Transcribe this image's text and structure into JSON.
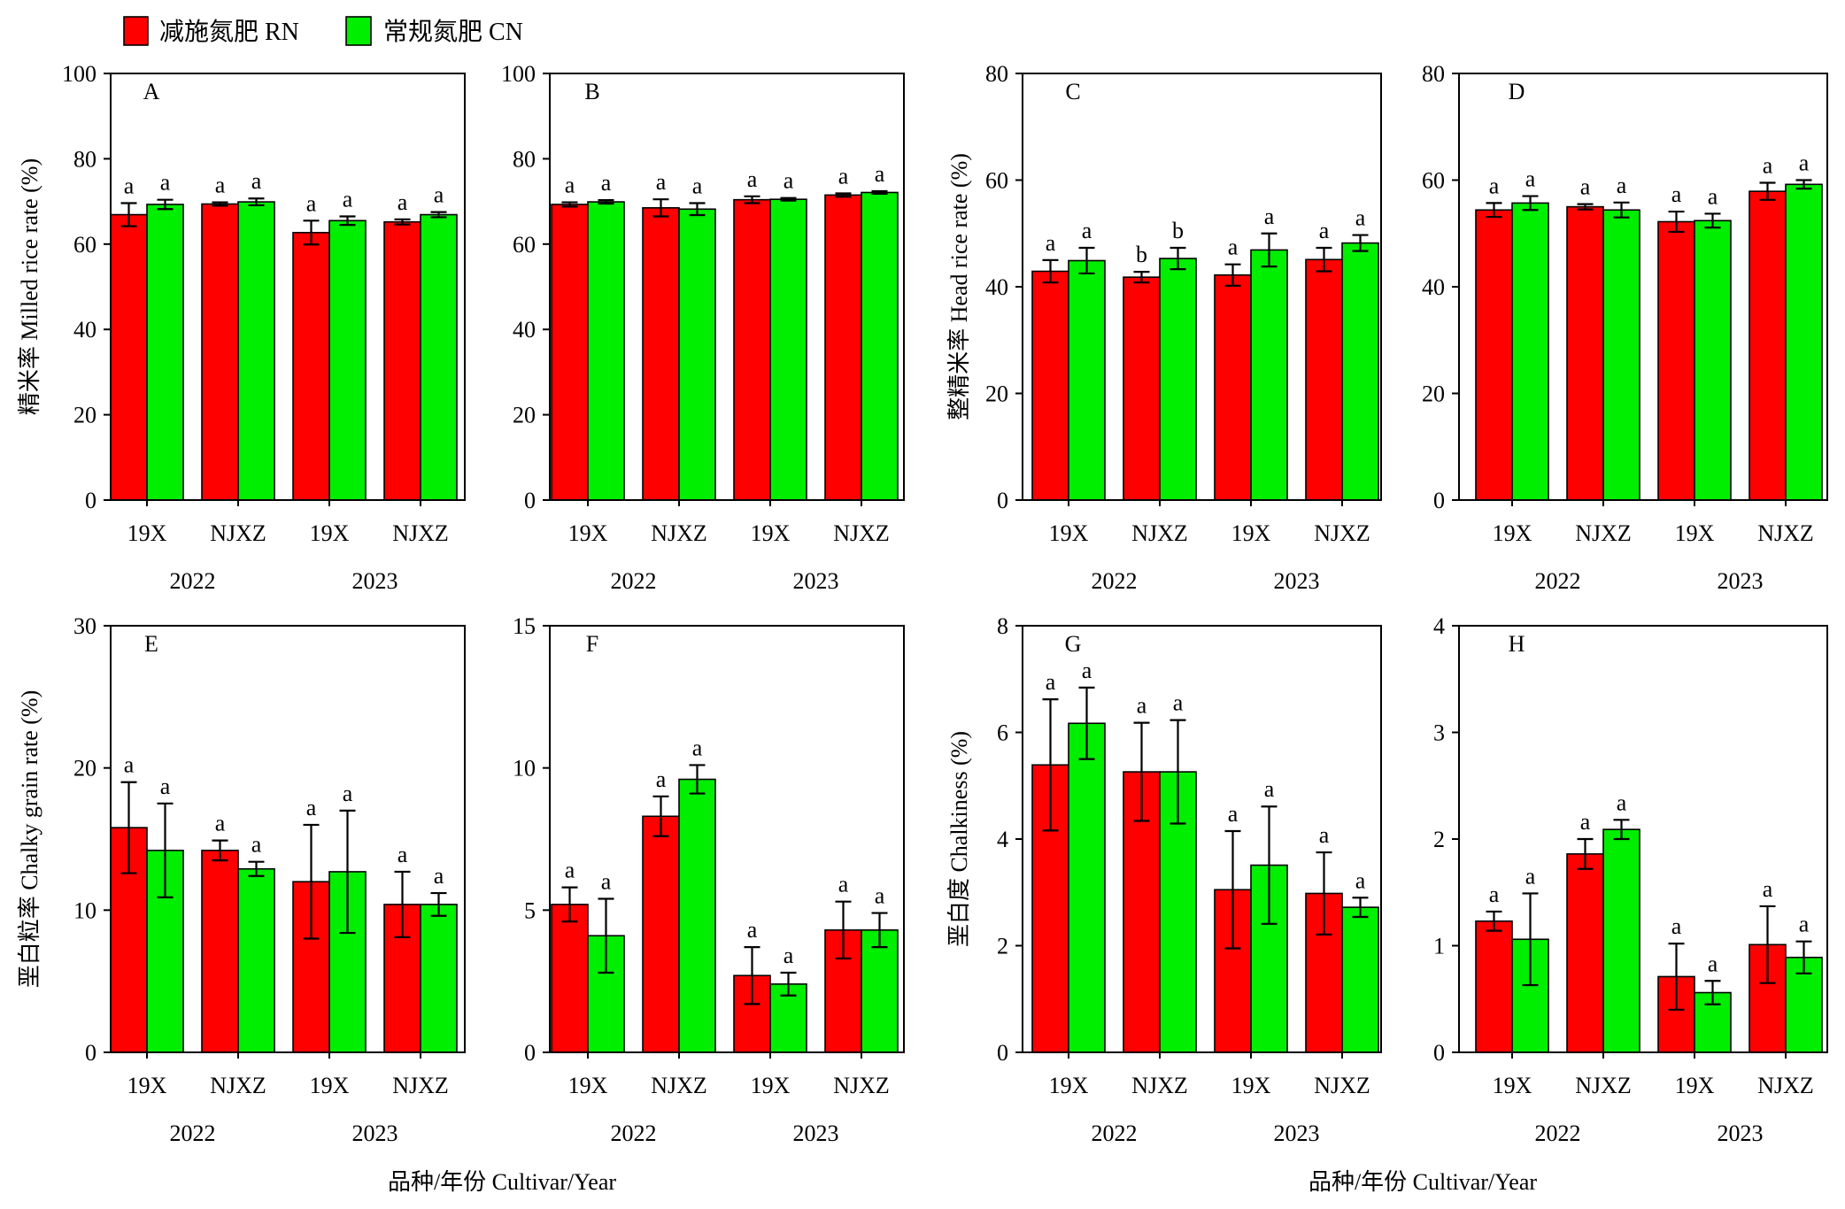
{
  "legend": [
    {
      "label": "减施氮肥 RN",
      "color": "#ff0000"
    },
    {
      "label": "常规氮肥 CN",
      "color": "#00ee00"
    }
  ],
  "legend_placement": "top-left",
  "figure_xlabels": [
    "品种/年份 Cultivar/Year",
    "品种/年份 Cultivar/Year"
  ],
  "chart_data": [
    {
      "type": "bar",
      "panel_label": "A",
      "ylabel": "精米率 Milled rice rate (%)",
      "categories": [
        "19X",
        "NJXZ",
        "19X",
        "NJXZ"
      ],
      "years": [
        "2022",
        "2023"
      ],
      "ylim": [
        0,
        100
      ],
      "yticks": [
        0,
        20,
        40,
        60,
        80,
        100
      ],
      "grid": false,
      "series": [
        {
          "color": "#ff0000",
          "values": [
            66.9,
            69.4,
            62.7,
            65.2
          ],
          "errors": [
            2.7,
            0.4,
            2.8,
            0.6
          ],
          "letters": [
            "a",
            "a",
            "a",
            "a"
          ]
        },
        {
          "color": "#00ee00",
          "values": [
            69.3,
            69.9,
            65.5,
            66.9
          ],
          "errors": [
            1.1,
            0.8,
            1.0,
            0.6
          ],
          "letters": [
            "a",
            "a",
            "a",
            "a"
          ]
        }
      ]
    },
    {
      "type": "bar",
      "panel_label": "B",
      "ylabel": "",
      "categories": [
        "19X",
        "NJXZ",
        "19X",
        "NJXZ"
      ],
      "years": [
        "2022",
        "2023"
      ],
      "ylim": [
        0,
        100
      ],
      "yticks": [
        0,
        20,
        40,
        60,
        80,
        100
      ],
      "grid": false,
      "series": [
        {
          "color": "#ff0000",
          "values": [
            69.3,
            68.5,
            70.4,
            71.5
          ],
          "errors": [
            0.5,
            2.0,
            0.8,
            0.4
          ],
          "letters": [
            "a",
            "a",
            "a",
            "a"
          ]
        },
        {
          "color": "#00ee00",
          "values": [
            69.9,
            68.2,
            70.5,
            72.1
          ],
          "errors": [
            0.4,
            1.4,
            0.3,
            0.3
          ],
          "letters": [
            "a",
            "a",
            "a",
            "a"
          ]
        }
      ]
    },
    {
      "type": "bar",
      "panel_label": "C",
      "ylabel": "整精米率 Head rice rate (%)",
      "categories": [
        "19X",
        "NJXZ",
        "19X",
        "NJXZ"
      ],
      "years": [
        "2022",
        "2023"
      ],
      "ylim": [
        0,
        80
      ],
      "yticks": [
        0,
        20,
        40,
        60,
        80
      ],
      "grid": false,
      "series": [
        {
          "color": "#ff0000",
          "values": [
            42.9,
            41.8,
            42.2,
            45.1
          ],
          "errors": [
            2.1,
            1.0,
            2.0,
            2.2
          ],
          "letters": [
            "a",
            "b",
            "a",
            "a"
          ]
        },
        {
          "color": "#00ee00",
          "values": [
            44.9,
            45.3,
            46.9,
            48.2
          ],
          "errors": [
            2.4,
            2.0,
            3.1,
            1.5
          ],
          "letters": [
            "a",
            "b",
            "a",
            "a"
          ]
        }
      ]
    },
    {
      "type": "bar",
      "panel_label": "D",
      "ylabel": "",
      "categories": [
        "19X",
        "NJXZ",
        "19X",
        "NJXZ"
      ],
      "years": [
        "2022",
        "2023"
      ],
      "ylim": [
        0,
        80
      ],
      "yticks": [
        0,
        20,
        40,
        60,
        80
      ],
      "grid": false,
      "series": [
        {
          "color": "#ff0000",
          "values": [
            54.4,
            55.0,
            52.2,
            57.9
          ],
          "errors": [
            1.3,
            0.5,
            1.9,
            1.6
          ],
          "letters": [
            "a",
            "a",
            "a",
            "a"
          ]
        },
        {
          "color": "#00ee00",
          "values": [
            55.7,
            54.4,
            52.4,
            59.2
          ],
          "errors": [
            1.3,
            1.4,
            1.3,
            0.8
          ],
          "letters": [
            "a",
            "a",
            "a",
            "a"
          ]
        }
      ]
    },
    {
      "type": "bar",
      "panel_label": "E",
      "ylabel": "垩白粒率 Chalky grain rate (%)",
      "categories": [
        "19X",
        "NJXZ",
        "19X",
        "NJXZ"
      ],
      "years": [
        "2022",
        "2023"
      ],
      "ylim": [
        0,
        30
      ],
      "yticks": [
        0,
        10,
        20,
        30
      ],
      "grid": false,
      "series": [
        {
          "color": "#ff0000",
          "values": [
            15.8,
            14.2,
            12.0,
            10.4
          ],
          "errors": [
            3.2,
            0.7,
            4.0,
            2.3
          ],
          "letters": [
            "a",
            "a",
            "a",
            "a"
          ]
        },
        {
          "color": "#00ee00",
          "values": [
            14.2,
            12.9,
            12.7,
            10.4
          ],
          "errors": [
            3.3,
            0.5,
            4.3,
            0.8
          ],
          "letters": [
            "a",
            "a",
            "a",
            "a"
          ]
        }
      ]
    },
    {
      "type": "bar",
      "panel_label": "F",
      "ylabel": "",
      "categories": [
        "19X",
        "NJXZ",
        "19X",
        "NJXZ"
      ],
      "years": [
        "2022",
        "2023"
      ],
      "ylim": [
        0,
        15
      ],
      "yticks": [
        0,
        5,
        10,
        15
      ],
      "grid": false,
      "series": [
        {
          "color": "#ff0000",
          "values": [
            5.2,
            8.3,
            2.7,
            4.3
          ],
          "errors": [
            0.6,
            0.7,
            1.0,
            1.0
          ],
          "letters": [
            "a",
            "a",
            "a",
            "a"
          ]
        },
        {
          "color": "#00ee00",
          "values": [
            4.1,
            9.6,
            2.4,
            4.3
          ],
          "errors": [
            1.3,
            0.5,
            0.4,
            0.6
          ],
          "letters": [
            "a",
            "a",
            "a",
            "a"
          ]
        }
      ]
    },
    {
      "type": "bar",
      "panel_label": "G",
      "ylabel": "垩白度 Chalkiness (%)",
      "categories": [
        "19X",
        "NJXZ",
        "19X",
        "NJXZ"
      ],
      "years": [
        "2022",
        "2023"
      ],
      "ylim": [
        0,
        8
      ],
      "yticks": [
        0,
        2,
        4,
        6,
        8
      ],
      "grid": false,
      "series": [
        {
          "color": "#ff0000",
          "values": [
            5.39,
            5.26,
            3.05,
            2.98
          ],
          "errors": [
            1.23,
            0.92,
            1.1,
            0.77
          ],
          "letters": [
            "a",
            "a",
            "a",
            "a"
          ]
        },
        {
          "color": "#00ee00",
          "values": [
            6.17,
            5.26,
            3.51,
            2.72
          ],
          "errors": [
            0.67,
            0.97,
            1.1,
            0.18
          ],
          "letters": [
            "a",
            "a",
            "a",
            "a"
          ]
        }
      ]
    },
    {
      "type": "bar",
      "panel_label": "H",
      "ylabel": "",
      "categories": [
        "19X",
        "NJXZ",
        "19X",
        "NJXZ"
      ],
      "years": [
        "2022",
        "2023"
      ],
      "ylim": [
        0,
        4
      ],
      "yticks": [
        0,
        1,
        2,
        3,
        4
      ],
      "grid": false,
      "series": [
        {
          "color": "#ff0000",
          "values": [
            1.23,
            1.86,
            0.71,
            1.01
          ],
          "errors": [
            0.09,
            0.14,
            0.31,
            0.36
          ],
          "letters": [
            "a",
            "a",
            "a",
            "a"
          ]
        },
        {
          "color": "#00ee00",
          "values": [
            1.06,
            2.09,
            0.56,
            0.89
          ],
          "errors": [
            0.43,
            0.09,
            0.11,
            0.15
          ],
          "letters": [
            "a",
            "a",
            "a",
            "a"
          ]
        }
      ]
    }
  ]
}
